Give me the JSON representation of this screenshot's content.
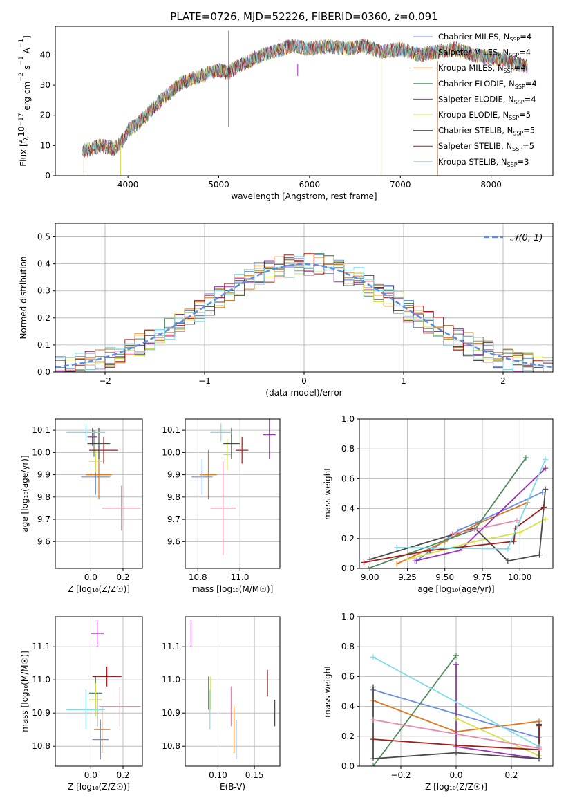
{
  "figure": {
    "title": "PLATE=0726, MJD=52226, FIBERID=0360, z=0.091"
  },
  "models": [
    {
      "name": "Chabrier MILES",
      "nssp": "4",
      "color": "#6a8fe0"
    },
    {
      "name": "Salpeter MILES",
      "nssp": "4",
      "color": "#e0761f"
    },
    {
      "name": "Kroupa MILES",
      "nssp": "4",
      "color": "#c0782a"
    },
    {
      "name": "Chabrier ELODIE",
      "nssp": "4",
      "color": "#4f8a5b"
    },
    {
      "name": "Salpeter ELODIE",
      "nssp": "4",
      "color": "#9c2fb0"
    },
    {
      "name": "Kroupa ELODIE",
      "nssp": "5",
      "color": "#d4e04a"
    },
    {
      "name": "Chabrier STELIB",
      "nssp": "5",
      "color": "#4a4a4a"
    },
    {
      "name": "Salpeter STELIB",
      "nssp": "5",
      "color": "#a51c1c"
    },
    {
      "name": "Kroupa STELIB",
      "nssp": "3",
      "color": "#7fdbe8"
    }
  ],
  "chart_data": [
    {
      "id": "spectrum",
      "type": "line",
      "title": "PLATE=0726, MJD=52226, FIBERID=0360, z=0.091",
      "xlabel": "wavelength [Angstrom, rest frame]",
      "ylabel_parts": {
        "a": "Flux [f",
        "b": "λ",
        "c": "10",
        "d": "−17",
        "e": " erg cm",
        "f": "−2",
        "g": " s",
        "h": "−1",
        "i": " A",
        "j": "−1",
        "k": "]"
      },
      "xlim": [
        3200,
        8680
      ],
      "ylim": [
        0,
        49.5
      ],
      "xticks": [
        4000,
        5000,
        6000,
        7000,
        8000
      ],
      "yticks": [
        0,
        10,
        20,
        30,
        40
      ],
      "legend_position": "top-right",
      "legend_suffix_sub": "SSP",
      "continuum": [
        [
          3500,
          8
        ],
        [
          3700,
          10
        ],
        [
          3850,
          9
        ],
        [
          3950,
          12
        ],
        [
          4000,
          15
        ],
        [
          4100,
          17
        ],
        [
          4200,
          20
        ],
        [
          4400,
          26
        ],
        [
          4600,
          31
        ],
        [
          4800,
          33
        ],
        [
          5000,
          35
        ],
        [
          5100,
          34
        ],
        [
          5200,
          36
        ],
        [
          5400,
          39
        ],
        [
          5600,
          41
        ],
        [
          5800,
          43
        ],
        [
          6000,
          42
        ],
        [
          6200,
          43
        ],
        [
          6400,
          42
        ],
        [
          6600,
          43
        ],
        [
          6800,
          41
        ],
        [
          7000,
          42
        ],
        [
          7200,
          40
        ],
        [
          7400,
          41
        ],
        [
          7600,
          42
        ],
        [
          7800,
          40
        ],
        [
          8000,
          39
        ],
        [
          8200,
          38
        ],
        [
          8400,
          36
        ]
      ],
      "noise_amplitude": 2.5,
      "spikes": [
        {
          "x": 5110,
          "y0": 16,
          "y1": 48,
          "color": "#4a4a4a"
        },
        {
          "x": 6790,
          "y0": 0,
          "y1": 38,
          "color": "#d4e04a"
        },
        {
          "x": 7410,
          "y0": 0,
          "y1": 38,
          "color": "#e0761f"
        },
        {
          "x": 3920,
          "y0": 0,
          "y1": 10,
          "color": "#d4e04a"
        },
        {
          "x": 3515,
          "y0": 0,
          "y1": 6,
          "color": "#e0761f"
        },
        {
          "x": 5870,
          "y0": 33,
          "y1": 37,
          "color": "#9c2fb0"
        }
      ]
    },
    {
      "id": "residual-histogram",
      "type": "histogram",
      "xlabel": "(data-model)/error",
      "ylabel": "Normed distribution",
      "xlim": [
        -2.5,
        2.5
      ],
      "ylim": [
        0,
        0.55
      ],
      "xticks": [
        -2,
        -1,
        0,
        1,
        2
      ],
      "yticks": [
        0.0,
        0.1,
        0.2,
        0.3,
        0.4,
        0.5
      ],
      "bin_edges_start": -2.5,
      "bin_width": 0.1,
      "gaussian_label": "𝒩(0, 1)",
      "gaussian_color": "#5b8ee0",
      "legend_position": "top-right"
    },
    {
      "id": "age-vs-z",
      "type": "errorbar",
      "xlabel": "Z [log₁₀(Z/Z☉)]",
      "ylabel": "age  [log₁₀(age/yr)]",
      "xlim": [
        -0.22,
        0.32
      ],
      "ylim": [
        9.48,
        10.15
      ],
      "xticks": [
        0.0,
        0.2
      ],
      "yticks": [
        9.6,
        9.7,
        9.8,
        9.9,
        10.0,
        10.1
      ],
      "points": [
        {
          "x": 0.03,
          "y": 9.89,
          "xerr": 0.09,
          "yerr": 0.08,
          "model": 0
        },
        {
          "x": 0.05,
          "y": 9.9,
          "xerr": 0.08,
          "yerr": 0.11,
          "model": 1
        },
        {
          "x": 0.02,
          "y": 10.04,
          "xerr": 0.04,
          "yerr": 0.06,
          "model": 3
        },
        {
          "x": 0.01,
          "y": 10.07,
          "xerr": 0.03,
          "yerr": 0.04,
          "model": 4
        },
        {
          "x": 0.03,
          "y": 9.96,
          "xerr": 0.04,
          "yerr": 0.05,
          "model": 5
        },
        {
          "x": 0.05,
          "y": 10.04,
          "xerr": 0.07,
          "yerr": 0.07,
          "model": 6
        },
        {
          "x": 0.08,
          "y": 10.01,
          "xerr": 0.09,
          "yerr": 0.06,
          "model": 7
        },
        {
          "x": -0.03,
          "y": 10.09,
          "xerr": 0.12,
          "yerr": 0.04,
          "model": 8
        },
        {
          "x": 0.19,
          "y": 9.75,
          "xerr": 0.12,
          "yerr": 0.1,
          "model": 2,
          "color_override": "#e88aae"
        }
      ]
    },
    {
      "id": "age-vs-mass",
      "type": "errorbar",
      "xlabel": "mass [log₁₀(M/M☉)]",
      "ylabel": "",
      "xlim": [
        10.74,
        11.19
      ],
      "ylim": [
        9.48,
        10.15
      ],
      "xticks": [
        10.8,
        11.0
      ],
      "yticks": [
        9.6,
        9.7,
        9.8,
        9.9,
        10.0,
        10.1
      ],
      "points": [
        {
          "x": 10.82,
          "y": 9.89,
          "xerr": 0.05,
          "yerr": 0.08,
          "model": 0
        },
        {
          "x": 10.85,
          "y": 9.9,
          "xerr": 0.04,
          "yerr": 0.11,
          "model": 1
        },
        {
          "x": 10.96,
          "y": 10.04,
          "xerr": 0.03,
          "yerr": 0.06,
          "model": 3
        },
        {
          "x": 11.14,
          "y": 10.08,
          "xerr": 0.03,
          "yerr": 0.11,
          "model": 4
        },
        {
          "x": 10.94,
          "y": 9.99,
          "xerr": 0.02,
          "yerr": 0.07,
          "model": 5
        },
        {
          "x": 10.96,
          "y": 10.04,
          "xerr": 0.04,
          "yerr": 0.07,
          "model": 6
        },
        {
          "x": 11.01,
          "y": 10.01,
          "xerr": 0.03,
          "yerr": 0.06,
          "model": 7
        },
        {
          "x": 10.91,
          "y": 10.09,
          "xerr": 0.05,
          "yerr": 0.04,
          "model": 8
        },
        {
          "x": 10.92,
          "y": 9.75,
          "xerr": 0.06,
          "yerr": 0.21,
          "model": 2,
          "color_override": "#e88aae"
        }
      ]
    },
    {
      "id": "mass-weight-vs-age",
      "type": "line",
      "xlabel": "age  [log₁₀(age/yr)]",
      "ylabel": "mass weight",
      "xlim": [
        8.93,
        10.22
      ],
      "ylim": [
        0,
        1
      ],
      "xticks": [
        9.0,
        9.25,
        9.5,
        9.75,
        10.0
      ],
      "yticks": [
        0.0,
        0.2,
        0.4,
        0.6,
        0.8,
        1.0
      ],
      "series": [
        {
          "model": 0,
          "points": [
            [
              9.31,
              0.05
            ],
            [
              9.6,
              0.26
            ],
            [
              9.72,
              0.31
            ],
            [
              10.15,
              0.51
            ]
          ]
        },
        {
          "model": 1,
          "points": [
            [
              9.18,
              0.03
            ],
            [
              9.5,
              0.18
            ],
            [
              9.72,
              0.3
            ],
            [
              10.05,
              0.44
            ]
          ]
        },
        {
          "model": 3,
          "points": [
            [
              8.99,
              0.0
            ],
            [
              9.7,
              0.26
            ],
            [
              10.04,
              0.74
            ]
          ]
        },
        {
          "model": 4,
          "points": [
            [
              9.3,
              0.05
            ],
            [
              9.6,
              0.12
            ],
            [
              10.17,
              0.67
            ]
          ]
        },
        {
          "model": 5,
          "points": [
            [
              9.25,
              0.06
            ],
            [
              9.7,
              0.18
            ],
            [
              10.0,
              0.24
            ],
            [
              10.17,
              0.33
            ]
          ]
        },
        {
          "model": 6,
          "points": [
            [
              9.0,
              0.06
            ],
            [
              9.7,
              0.27
            ],
            [
              9.92,
              0.05
            ],
            [
              10.13,
              0.09
            ],
            [
              10.17,
              0.53
            ]
          ]
        },
        {
          "model": 7,
          "points": [
            [
              8.96,
              0.04
            ],
            [
              9.4,
              0.12
            ],
            [
              9.96,
              0.18
            ],
            [
              9.97,
              0.27
            ],
            [
              10.16,
              0.41
            ]
          ]
        },
        {
          "model": 8,
          "points": [
            [
              9.18,
              0.14
            ],
            [
              9.92,
              0.13
            ],
            [
              10.17,
              0.73
            ]
          ]
        },
        {
          "model": 2,
          "color_override": "#e88aae",
          "points": [
            [
              9.55,
              0.23
            ],
            [
              9.98,
              0.32
            ]
          ]
        }
      ]
    },
    {
      "id": "mass-vs-z",
      "type": "errorbar",
      "xlabel": "Z [log₁₀(Z/Z☉)]",
      "ylabel": "mass [log₁₀(M/M☉)]",
      "xlim": [
        -0.22,
        0.32
      ],
      "ylim": [
        10.74,
        11.19
      ],
      "xticks": [
        0.0,
        0.2
      ],
      "yticks": [
        10.8,
        10.9,
        11.0,
        11.1
      ],
      "points": [
        {
          "x": 0.06,
          "y": 10.82,
          "xerr": 0.05,
          "yerr": 0.06,
          "model": 0
        },
        {
          "x": 0.07,
          "y": 10.85,
          "xerr": 0.05,
          "yerr": 0.07,
          "model": 1
        },
        {
          "x": 0.03,
          "y": 10.96,
          "xerr": 0.04,
          "yerr": 0.05,
          "model": 3
        },
        {
          "x": 0.04,
          "y": 11.14,
          "xerr": 0.04,
          "yerr": 0.04,
          "model": 4
        },
        {
          "x": 0.03,
          "y": 10.94,
          "xerr": 0.04,
          "yerr": 0.05,
          "model": 5
        },
        {
          "x": 0.04,
          "y": 10.91,
          "xerr": 0.04,
          "yerr": 0.05,
          "model": 6
        },
        {
          "x": 0.1,
          "y": 11.01,
          "xerr": 0.09,
          "yerr": 0.03,
          "model": 7
        },
        {
          "x": -0.03,
          "y": 10.91,
          "xerr": 0.12,
          "yerr": 0.06,
          "model": 8
        },
        {
          "x": 0.18,
          "y": 10.92,
          "xerr": 0.13,
          "yerr": 0.06,
          "model": 2,
          "color_override": "#e88aae"
        }
      ]
    },
    {
      "id": "mass-vs-ebv",
      "type": "errorbar",
      "xlabel": "E(B-V)",
      "ylabel": "",
      "xlim": [
        0.055,
        0.185
      ],
      "ylim": [
        10.74,
        11.19
      ],
      "xticks": [
        0.1,
        0.15
      ],
      "yticks": [
        10.8,
        10.9,
        11.0,
        11.1
      ],
      "points": [
        {
          "x": 0.125,
          "y": 10.82,
          "xerr": 0,
          "yerr": 0.06,
          "model": 0
        },
        {
          "x": 0.122,
          "y": 10.85,
          "xerr": 0,
          "yerr": 0.07,
          "model": 1
        },
        {
          "x": 0.087,
          "y": 10.96,
          "xerr": 0,
          "yerr": 0.05,
          "model": 3
        },
        {
          "x": 0.063,
          "y": 11.14,
          "xerr": 0,
          "yerr": 0.04,
          "model": 4
        },
        {
          "x": 0.09,
          "y": 10.96,
          "xerr": 0,
          "yerr": 0.05,
          "model": 5
        },
        {
          "x": 0.178,
          "y": 10.9,
          "xerr": 0,
          "yerr": 0.04,
          "model": 6
        },
        {
          "x": 0.168,
          "y": 10.99,
          "xerr": 0,
          "yerr": 0.04,
          "model": 7
        },
        {
          "x": 0.089,
          "y": 10.91,
          "xerr": 0,
          "yerr": 0.06,
          "model": 8
        },
        {
          "x": 0.118,
          "y": 10.92,
          "xerr": 0,
          "yerr": 0.06,
          "model": 2,
          "color_override": "#e88aae"
        }
      ]
    },
    {
      "id": "mass-weight-vs-z",
      "type": "line",
      "xlabel": "Z [log₁₀(Z/Z☉)]",
      "ylabel": "mass weight",
      "xlim": [
        -0.35,
        0.35
      ],
      "ylim": [
        0,
        1
      ],
      "xticks": [
        -0.2,
        0.0,
        0.2
      ],
      "yticks": [
        0.0,
        0.2,
        0.4,
        0.6,
        0.8,
        1.0
      ],
      "series": [
        {
          "model": 0,
          "points": [
            [
              -0.3,
              0.51
            ],
            [
              0.3,
              0.19
            ]
          ]
        },
        {
          "model": 1,
          "points": [
            [
              -0.3,
              0.44
            ],
            [
              0.0,
              0.23
            ],
            [
              0.3,
              0.3
            ]
          ]
        },
        {
          "model": 3,
          "points": [
            [
              -0.3,
              0.0
            ],
            [
              0.0,
              0.74
            ]
          ]
        },
        {
          "model": 4,
          "points": [
            [
              0.0,
              0.68
            ],
            [
              0.0,
              0.13
            ],
            [
              0.3,
              0.05
            ]
          ]
        },
        {
          "model": 5,
          "points": [
            [
              0.0,
              0.32
            ],
            [
              0.3,
              0.07
            ]
          ]
        },
        {
          "model": 6,
          "points": [
            [
              -0.3,
              0.53
            ],
            [
              -0.3,
              0.05
            ],
            [
              0.0,
              0.09
            ],
            [
              0.3,
              0.05
            ],
            [
              0.3,
              0.28
            ]
          ]
        },
        {
          "model": 7,
          "points": [
            [
              -0.3,
              0.18
            ],
            [
              0.0,
              0.14
            ],
            [
              0.3,
              0.11
            ],
            [
              0.3,
              0.27
            ]
          ]
        },
        {
          "model": 8,
          "points": [
            [
              -0.3,
              0.73
            ],
            [
              0.3,
              0.13
            ]
          ]
        },
        {
          "model": 2,
          "color_override": "#e88aae",
          "points": [
            [
              -0.3,
              0.31
            ],
            [
              0.3,
              0.12
            ]
          ]
        }
      ]
    }
  ]
}
